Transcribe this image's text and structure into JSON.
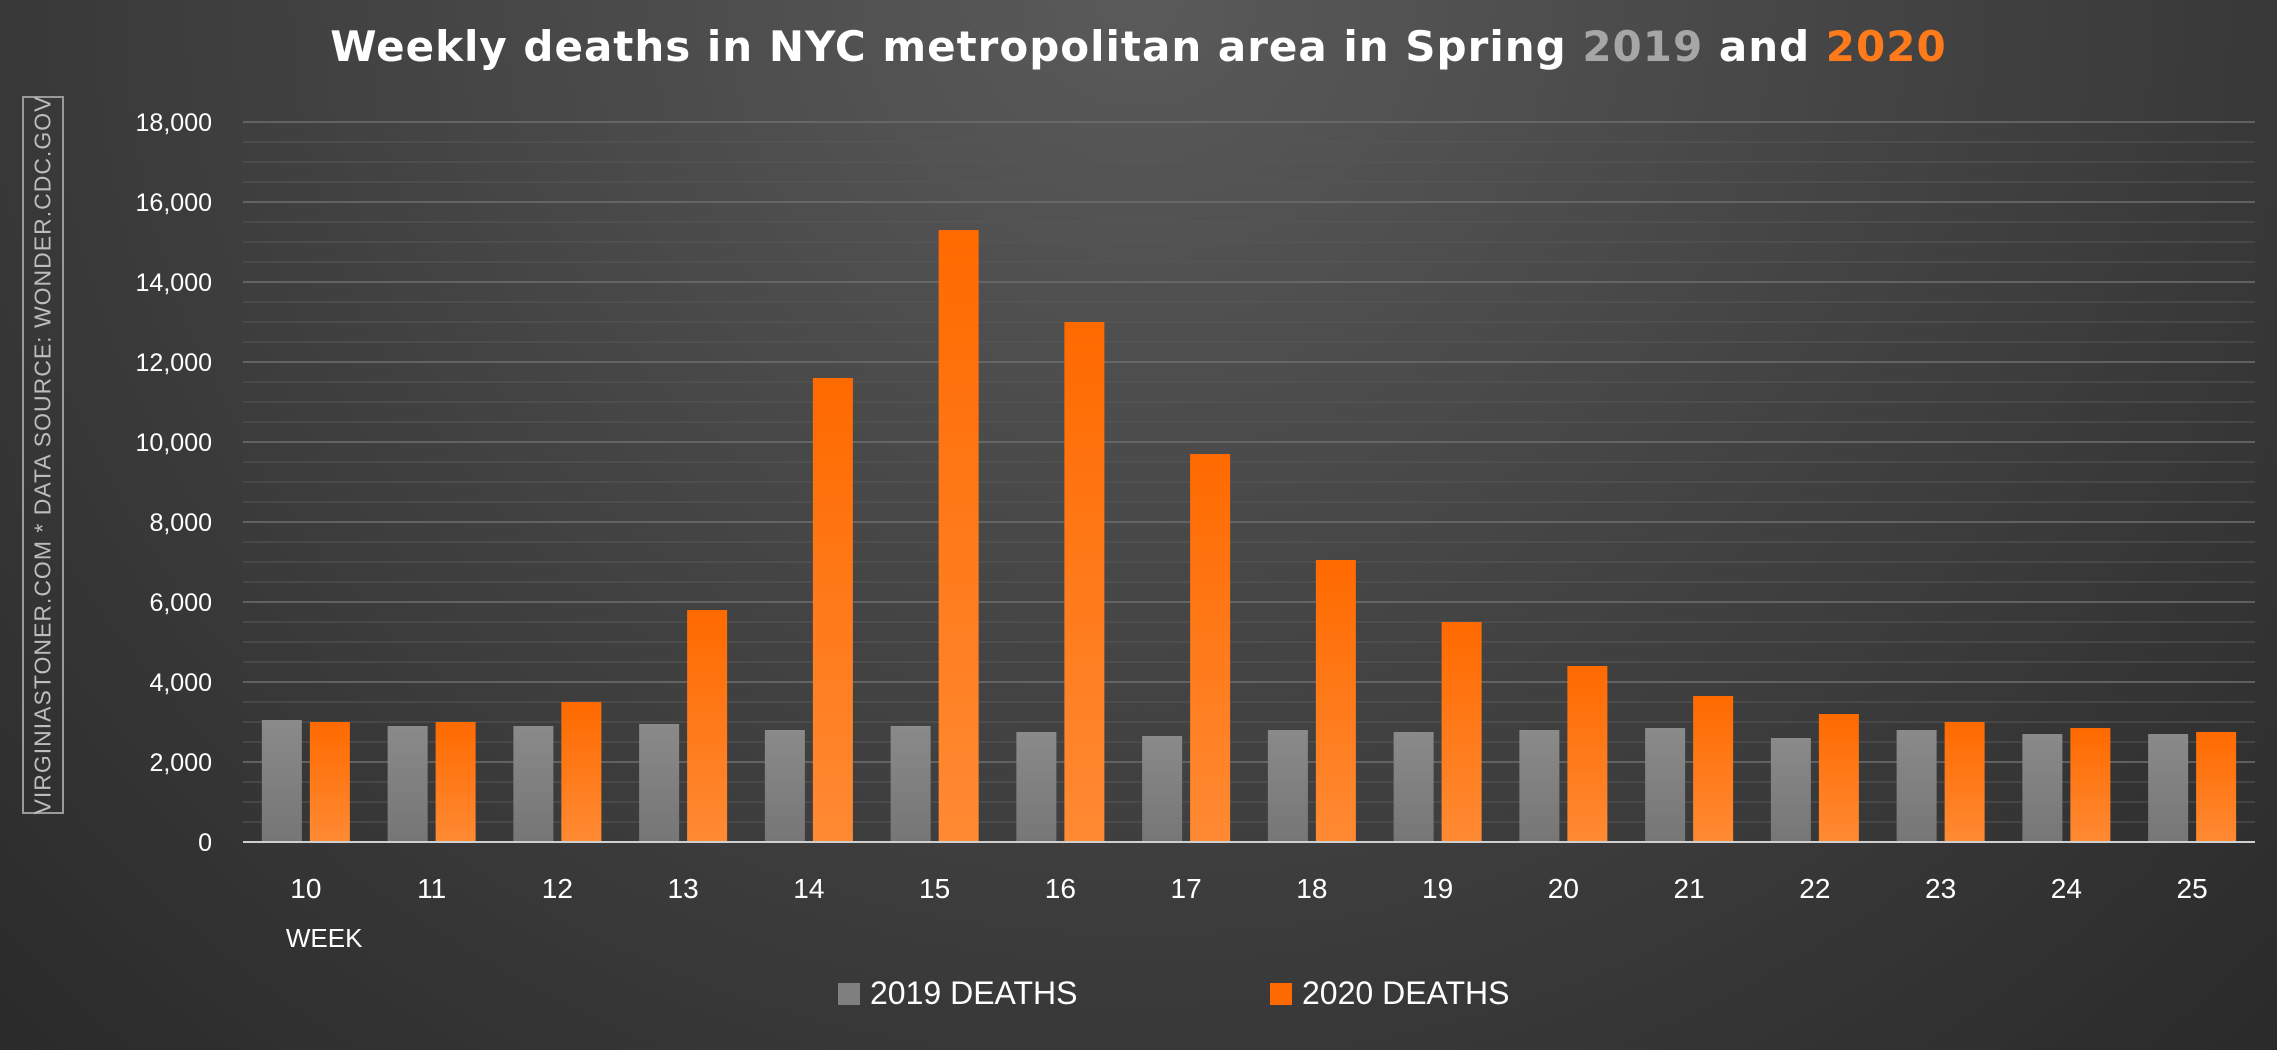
{
  "title": {
    "prefix": "Weekly deaths in NYC metropolitan area in Spring",
    "year_a": "2019",
    "joiner": "and",
    "year_b": "2020"
  },
  "side_note": "VIRGINIASTONER.COM * DATA SOURCE: WONDER.CDC.GOV",
  "colors": {
    "series_2019": "#7f7f7f",
    "series_2020": "#ff6a00"
  },
  "chart_data": {
    "type": "bar",
    "title": "Weekly deaths in NYC metropolitan area in Spring 2019 and 2020",
    "xlabel": "WEEK",
    "ylabel": "",
    "categories": [
      "10",
      "11",
      "12",
      "13",
      "14",
      "15",
      "16",
      "17",
      "18",
      "19",
      "20",
      "21",
      "22",
      "23",
      "24",
      "25"
    ],
    "series": [
      {
        "name": "2019 DEATHS",
        "values": [
          3050,
          2900,
          2900,
          2950,
          2800,
          2900,
          2750,
          2650,
          2800,
          2750,
          2800,
          2850,
          2600,
          2800,
          2700,
          2700
        ]
      },
      {
        "name": "2020 DEATHS",
        "values": [
          3000,
          3000,
          3500,
          5800,
          11600,
          15300,
          13000,
          9700,
          7050,
          5500,
          4400,
          3650,
          3200,
          3000,
          2850,
          2750
        ]
      }
    ],
    "ylim": [
      0,
      18000
    ],
    "yticks": [
      "0",
      "2,000",
      "4,000",
      "6,000",
      "8,000",
      "10,000",
      "12,000",
      "14,000",
      "16,000",
      "18,000"
    ],
    "grid": true,
    "legend": "bottom-center"
  }
}
